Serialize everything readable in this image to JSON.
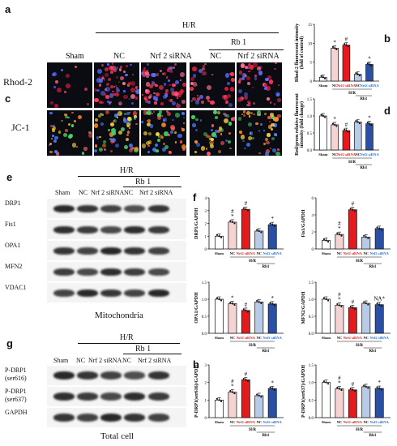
{
  "panels": {
    "a": "a",
    "b": "b",
    "c": "c",
    "d": "d",
    "e": "e",
    "f": "f",
    "g": "g",
    "h": "h"
  },
  "micro": {
    "hr_header": "H/R",
    "rb_header": "Rb 1",
    "columns": [
      "Sham",
      "NC",
      "Nrf 2 siRNA",
      "NC",
      "Nrf 2 siRNA"
    ],
    "rows": [
      "Rhod-2",
      "JC-1"
    ]
  },
  "blot_e": {
    "hr_header": "H/R",
    "rb_header": "Rb 1",
    "lanes": [
      "Sham",
      "NC",
      "Nrf 2 siRNA",
      "NC",
      "Nrf 2 siRNA"
    ],
    "proteins": [
      "DRP1",
      "Fis1",
      "OPA1",
      "MFN2",
      "VDAC1"
    ],
    "caption": "Mitochondria"
  },
  "blot_g": {
    "hr_header": "H/R",
    "rb_header": "Rb 1",
    "lanes": [
      "Sham",
      "NC",
      "Nrf 2 siRNA",
      "NC",
      "Nrf 2 siRNA"
    ],
    "proteins": [
      "P-DRP1\n(ser616)",
      "P-DRP1\n(ser637)",
      "GAPDH"
    ],
    "caption": "Total cell"
  },
  "group_labels": [
    "Sham",
    "NC",
    "Nrf2 siRNA",
    "NC",
    "Nrf2 siRNA"
  ],
  "group_hr": "H/R",
  "group_rb": "Rb1",
  "colors": {
    "sham": "#ffffff",
    "nc": "#f6d3d3",
    "sirna": "#e41a1c",
    "rbnc": "#b8cbe6",
    "rbsirna": "#2a4fa3",
    "sirna_text": "#e41a1c",
    "rb_text": "#2a6fd6"
  },
  "chart_data": [
    {
      "id": "b",
      "type": "bar",
      "ylabel": "Rhod-2 fluorescent intensity\n(fold of control)",
      "ylim": [
        0,
        15
      ],
      "yticks": [
        0,
        5,
        10,
        15
      ],
      "values": [
        1,
        8.7,
        9.5,
        1.8,
        4.4
      ],
      "annotations": [
        "",
        "*",
        "#",
        "",
        "*"
      ]
    },
    {
      "id": "d",
      "type": "bar",
      "ylabel": "Red/green relative fluorescent\nintensity (fold change)",
      "ylim": [
        0,
        1.5
      ],
      "yticks": [
        0.0,
        0.5,
        1.0,
        1.5
      ],
      "values": [
        1.0,
        0.74,
        0.57,
        0.82,
        0.77
      ],
      "annotations": [
        "",
        "*",
        "#",
        "",
        "*"
      ]
    },
    {
      "id": "f1",
      "type": "bar",
      "ylabel": "DRP1/GAPDH",
      "ylim": [
        0,
        4
      ],
      "yticks": [
        0,
        1,
        2,
        3,
        4
      ],
      "values": [
        1.0,
        2.1,
        3.1,
        1.4,
        1.9
      ],
      "annotations": [
        "",
        "#\n*",
        "#",
        "",
        "*"
      ]
    },
    {
      "id": "f2",
      "type": "bar",
      "ylabel": "Fis1/GAPDH",
      "ylim": [
        0,
        6
      ],
      "yticks": [
        0,
        2,
        4,
        6
      ],
      "values": [
        1.0,
        1.7,
        4.6,
        1.4,
        2.4
      ],
      "annotations": [
        "",
        "#\n*",
        "#",
        "",
        ""
      ]
    },
    {
      "id": "f3",
      "type": "bar",
      "ylabel": "OPA1/GAPDH",
      "ylim": [
        0,
        1.5
      ],
      "yticks": [
        0.0,
        0.5,
        1.0,
        1.5
      ],
      "values": [
        1.0,
        0.87,
        0.67,
        0.92,
        0.86
      ],
      "annotations": [
        "",
        "*",
        "#",
        "",
        "*"
      ]
    },
    {
      "id": "f4",
      "type": "bar",
      "ylabel": "MFN2/GAPDH",
      "ylim": [
        0,
        1.5
      ],
      "yticks": [
        0.0,
        0.5,
        1.0,
        1.5
      ],
      "values": [
        1.0,
        0.82,
        0.75,
        0.88,
        0.84
      ],
      "annotations": [
        "",
        "#\n*",
        "#",
        "",
        "NA*"
      ]
    },
    {
      "id": "h1",
      "type": "bar",
      "ylabel": "P-DRP1(ser616)/GAPDH",
      "ylim": [
        0,
        3
      ],
      "yticks": [
        0,
        1,
        2,
        3
      ],
      "values": [
        1.0,
        1.45,
        2.15,
        1.25,
        1.65
      ],
      "annotations": [
        "",
        "#\n*",
        "#",
        "",
        "*"
      ]
    },
    {
      "id": "h2",
      "type": "bar",
      "ylabel": "P-DRP1(ser637)/GAPDH",
      "ylim": [
        0,
        1.5
      ],
      "yticks": [
        0.0,
        0.5,
        1.0,
        1.5
      ],
      "values": [
        1.0,
        0.82,
        0.79,
        0.88,
        0.83
      ],
      "annotations": [
        "",
        "#\n*",
        "#",
        "",
        "*"
      ]
    }
  ]
}
